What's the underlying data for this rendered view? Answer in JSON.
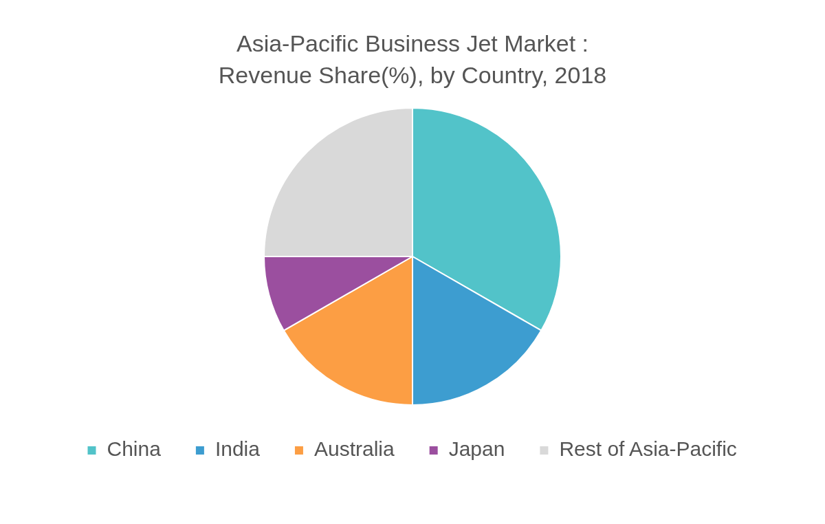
{
  "chart_data": {
    "type": "pie",
    "title": "Asia-Pacific Business Jet Market : Revenue Share(%), by Country, 2018",
    "categories": [
      "China",
      "India",
      "Australia",
      "Japan",
      "Rest of Asia-Pacific"
    ],
    "values": [
      33.3,
      16.7,
      16.7,
      8.3,
      25
    ],
    "colors": [
      "#52c3c9",
      "#3d9dd0",
      "#fc9e44",
      "#9b4f9f",
      "#d9d9d9"
    ],
    "legend": "bottom"
  }
}
